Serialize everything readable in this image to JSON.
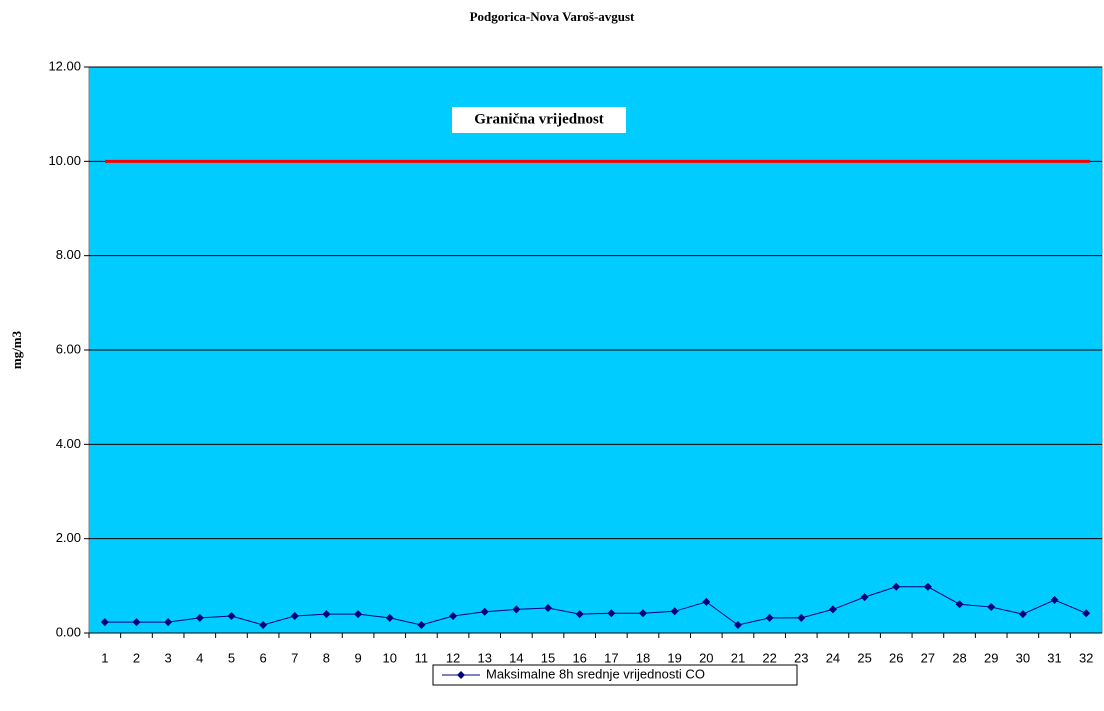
{
  "chart_data": {
    "type": "line",
    "title": "Podgorica-Nova Varoš-avgust",
    "y_label": "mg/m3",
    "categories": [
      "1",
      "2",
      "3",
      "4",
      "5",
      "6",
      "7",
      "8",
      "9",
      "10",
      "11",
      "12",
      "13",
      "14",
      "15",
      "16",
      "17",
      "18",
      "19",
      "20",
      "21",
      "22",
      "23",
      "24",
      "25",
      "26",
      "27",
      "28",
      "29",
      "30",
      "31",
      "32"
    ],
    "series": [
      {
        "name": "Maksimalne 8h srednje vrijednosti CO",
        "color": "#000080",
        "values": [
          0.23,
          0.23,
          0.23,
          0.32,
          0.36,
          0.17,
          0.36,
          0.4,
          0.4,
          0.32,
          0.17,
          0.36,
          0.45,
          0.5,
          0.53,
          0.4,
          0.42,
          0.42,
          0.46,
          0.66,
          0.17,
          0.32,
          0.32,
          0.5,
          0.76,
          0.98,
          0.98,
          0.61,
          0.55,
          0.4,
          0.7,
          0.42
        ]
      }
    ],
    "threshold": {
      "label": "Granična vrijednost",
      "value": 10,
      "color": "#ff0000"
    },
    "ylim": [
      0,
      12
    ],
    "yticks": [
      {
        "value": 0,
        "label": "0.00"
      },
      {
        "value": 2,
        "label": "2.00"
      },
      {
        "value": 4,
        "label": "4.00"
      },
      {
        "value": 6,
        "label": "6.00"
      },
      {
        "value": 8,
        "label": "8.00"
      },
      {
        "value": 10,
        "label": "10.00"
      },
      {
        "value": 12,
        "label": "12.00"
      }
    ],
    "grid": true,
    "plot_background": "#00ccff",
    "legend": "bottom"
  }
}
